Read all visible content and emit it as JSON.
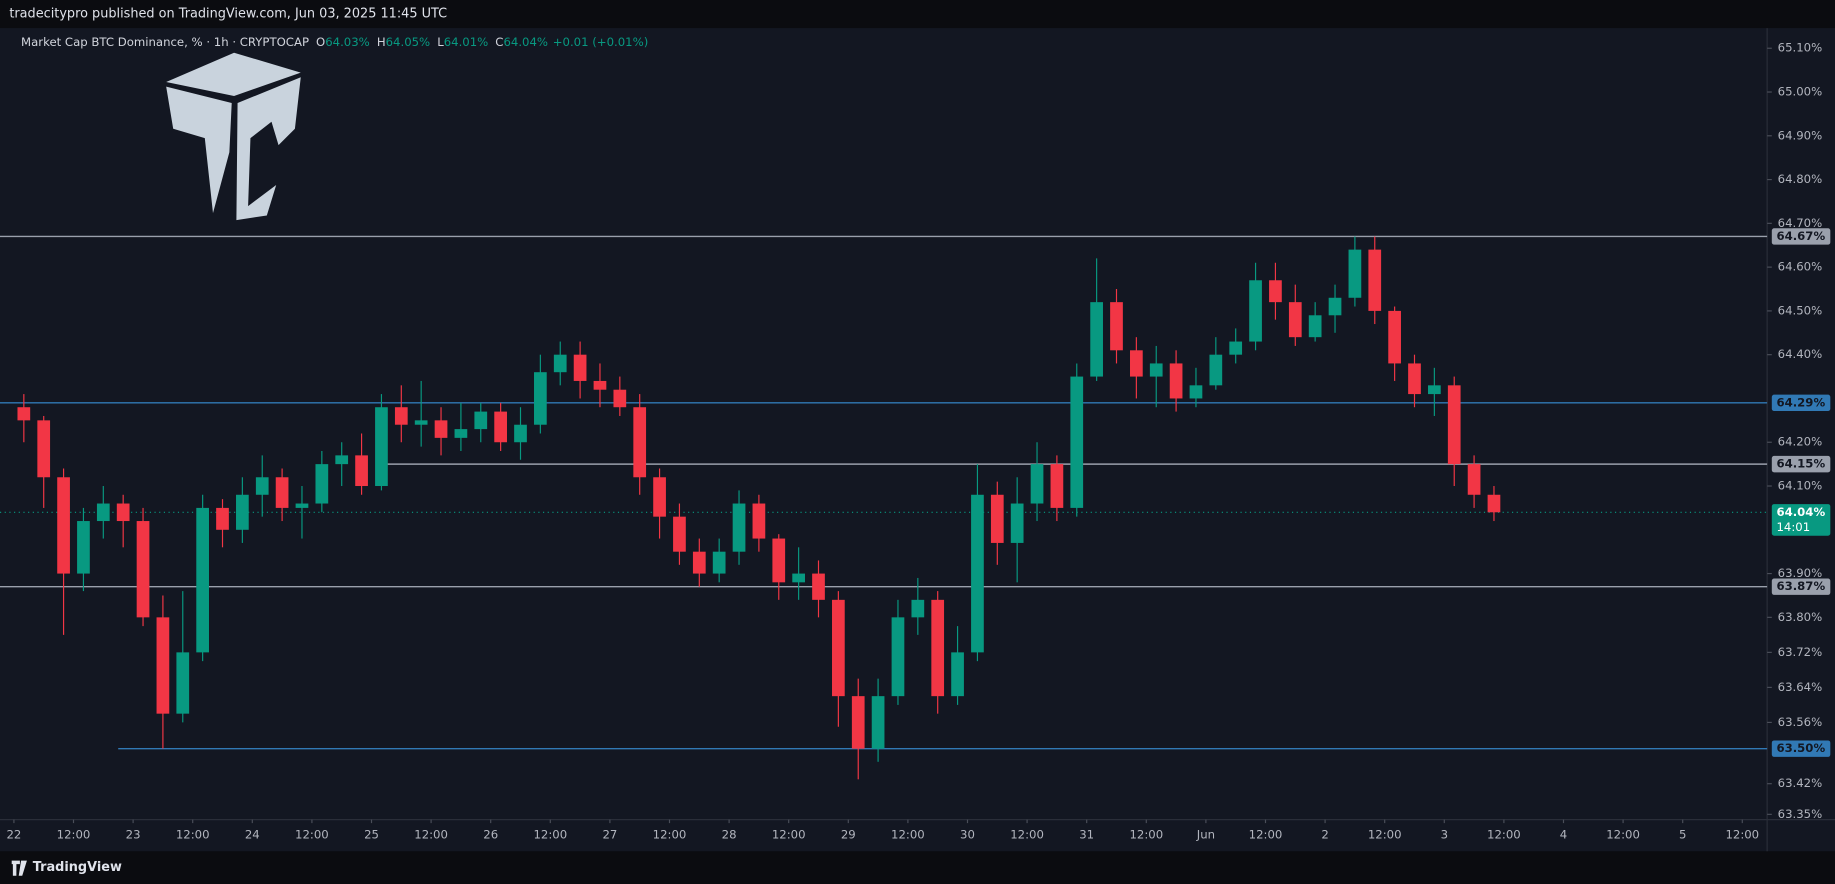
{
  "header": {
    "publisher": "tradecitypro published on TradingView.com, Jun 03, 2025 11:45 UTC"
  },
  "footer": {
    "brand": "TradingView"
  },
  "chart_data": {
    "type": "candlestick",
    "symbol": "Market Cap BTC Dominance, % · 1h · CRYPTOCAP",
    "legend_ohlc": [
      {
        "key": "O",
        "value": 64.03,
        "label": "64.03%"
      },
      {
        "key": "H",
        "value": 64.05,
        "label": "64.05%"
      },
      {
        "key": "L",
        "value": 64.01,
        "label": "64.01%"
      },
      {
        "key": "C",
        "value": 64.04,
        "label": "64.04%"
      }
    ],
    "change": "+0.01 (+0.01%)",
    "up_color": "#089981",
    "down_color": "#f23645",
    "x": [
      0,
      4,
      8,
      12,
      16,
      20,
      24,
      28,
      32,
      36,
      40,
      44,
      48,
      52,
      56,
      60,
      64,
      68,
      72,
      76,
      80,
      84,
      88,
      92,
      96,
      100,
      104,
      108,
      112,
      116,
      120,
      124,
      128,
      132,
      136,
      140,
      144,
      148,
      152,
      156,
      160,
      164,
      168,
      172,
      176,
      180,
      184,
      188,
      192,
      196,
      200,
      204,
      208,
      212,
      216,
      220,
      224,
      228,
      232,
      236,
      240,
      244,
      248,
      252,
      256,
      260,
      264,
      268,
      272,
      276,
      280,
      284,
      288,
      292,
      296
    ],
    "open": [
      64.28,
      64.25,
      64.12,
      63.9,
      64.02,
      64.06,
      64.02,
      63.8,
      63.58,
      63.72,
      64.05,
      64.0,
      64.08,
      64.12,
      64.05,
      64.06,
      64.15,
      64.17,
      64.1,
      64.28,
      64.24,
      64.25,
      64.21,
      64.23,
      64.27,
      64.2,
      64.24,
      64.36,
      64.4,
      64.34,
      64.32,
      64.28,
      64.12,
      64.03,
      63.95,
      63.9,
      63.95,
      64.06,
      63.98,
      63.88,
      63.9,
      63.84,
      63.62,
      63.5,
      63.62,
      63.8,
      63.84,
      63.62,
      63.72,
      64.08,
      63.97,
      64.06,
      64.15,
      64.05,
      64.35,
      64.52,
      64.41,
      64.35,
      64.38,
      64.3,
      64.33,
      64.4,
      64.43,
      64.57,
      64.52,
      64.44,
      64.49,
      64.53,
      64.64,
      64.5,
      64.38,
      64.31,
      64.33,
      64.15,
      64.08
    ],
    "high": [
      64.31,
      64.26,
      64.14,
      64.05,
      64.1,
      64.08,
      64.05,
      63.85,
      63.86,
      64.08,
      64.07,
      64.12,
      64.17,
      64.14,
      64.1,
      64.18,
      64.2,
      64.22,
      64.31,
      64.33,
      64.34,
      64.28,
      64.29,
      64.29,
      64.29,
      64.28,
      64.4,
      64.43,
      64.43,
      64.38,
      64.35,
      64.31,
      64.14,
      64.06,
      63.98,
      63.98,
      64.09,
      64.08,
      63.99,
      63.96,
      63.93,
      63.86,
      63.66,
      63.66,
      63.84,
      63.89,
      63.86,
      63.78,
      64.15,
      64.11,
      64.12,
      64.2,
      64.17,
      64.38,
      64.62,
      64.55,
      64.44,
      64.42,
      64.41,
      64.37,
      64.44,
      64.46,
      64.61,
      64.61,
      64.56,
      64.52,
      64.56,
      64.67,
      64.67,
      64.51,
      64.4,
      64.37,
      64.35,
      64.17,
      64.1
    ],
    "low": [
      64.2,
      64.05,
      63.76,
      63.86,
      63.98,
      63.96,
      63.78,
      63.5,
      63.56,
      63.7,
      63.96,
      63.97,
      64.03,
      64.02,
      63.98,
      64.04,
      64.1,
      64.08,
      64.09,
      64.2,
      64.19,
      64.17,
      64.18,
      64.2,
      64.18,
      64.16,
      64.22,
      64.33,
      64.3,
      64.28,
      64.26,
      64.08,
      63.98,
      63.92,
      63.87,
      63.88,
      63.92,
      63.95,
      63.84,
      63.84,
      63.8,
      63.55,
      63.43,
      63.47,
      63.6,
      63.76,
      63.58,
      63.6,
      63.7,
      63.92,
      63.88,
      64.02,
      64.02,
      64.03,
      64.34,
      64.38,
      64.3,
      64.28,
      64.27,
      64.28,
      64.32,
      64.38,
      64.41,
      64.48,
      64.42,
      64.43,
      64.45,
      64.51,
      64.47,
      64.34,
      64.28,
      64.26,
      64.1,
      64.05,
      64.02
    ],
    "close": [
      64.25,
      64.12,
      63.9,
      64.02,
      64.06,
      64.02,
      63.8,
      63.58,
      63.72,
      64.05,
      64.0,
      64.08,
      64.12,
      64.05,
      64.06,
      64.15,
      64.17,
      64.1,
      64.28,
      64.24,
      64.25,
      64.21,
      64.23,
      64.27,
      64.2,
      64.24,
      64.36,
      64.4,
      64.34,
      64.32,
      64.28,
      64.12,
      64.03,
      63.95,
      63.9,
      63.95,
      64.06,
      63.98,
      63.88,
      63.9,
      63.84,
      63.62,
      63.5,
      63.62,
      63.8,
      63.84,
      63.62,
      63.72,
      64.08,
      63.97,
      64.06,
      64.15,
      64.05,
      64.35,
      64.52,
      64.41,
      64.35,
      64.38,
      64.3,
      64.33,
      64.4,
      64.43,
      64.57,
      64.52,
      64.44,
      64.49,
      64.53,
      64.64,
      64.5,
      64.38,
      64.31,
      64.33,
      64.15,
      64.08,
      64.04
    ],
    "xlim": [
      -2.8,
      353
    ],
    "ylim": [
      63.338,
      65.146
    ],
    "xticks": [
      {
        "value": 0,
        "label": "22"
      },
      {
        "value": 12,
        "label": "12:00"
      },
      {
        "value": 24,
        "label": "23"
      },
      {
        "value": 36,
        "label": "12:00"
      },
      {
        "value": 48,
        "label": "24"
      },
      {
        "value": 60,
        "label": "12:00"
      },
      {
        "value": 72,
        "label": "25"
      },
      {
        "value": 84,
        "label": "12:00"
      },
      {
        "value": 96,
        "label": "26"
      },
      {
        "value": 108,
        "label": "12:00"
      },
      {
        "value": 120,
        "label": "27"
      },
      {
        "value": 132,
        "label": "12:00"
      },
      {
        "value": 144,
        "label": "28"
      },
      {
        "value": 156,
        "label": "12:00"
      },
      {
        "value": 168,
        "label": "29"
      },
      {
        "value": 180,
        "label": "12:00"
      },
      {
        "value": 192,
        "label": "30"
      },
      {
        "value": 204,
        "label": "12:00"
      },
      {
        "value": 216,
        "label": "31"
      },
      {
        "value": 228,
        "label": "12:00"
      },
      {
        "value": 240,
        "label": "Jun"
      },
      {
        "value": 252,
        "label": "12:00"
      },
      {
        "value": 264,
        "label": "2"
      },
      {
        "value": 276,
        "label": "12:00"
      },
      {
        "value": 288,
        "label": "3"
      },
      {
        "value": 300,
        "label": "12:00"
      },
      {
        "value": 312,
        "label": "4"
      },
      {
        "value": 324,
        "label": "12:00"
      },
      {
        "value": 336,
        "label": "5"
      },
      {
        "value": 348,
        "label": "12:00"
      }
    ],
    "yticks": [
      {
        "value": 65.1,
        "label": "65.10%"
      },
      {
        "value": 65.0,
        "label": "65.00%"
      },
      {
        "value": 64.9,
        "label": "64.90%"
      },
      {
        "value": 64.8,
        "label": "64.80%"
      },
      {
        "value": 64.7,
        "label": "64.70%"
      },
      {
        "value": 64.6,
        "label": "64.60%"
      },
      {
        "value": 64.5,
        "label": "64.50%"
      },
      {
        "value": 64.4,
        "label": "64.40%"
      },
      {
        "value": 64.2,
        "label": "64.20%"
      },
      {
        "value": 64.1,
        "label": "64.10%"
      },
      {
        "value": 63.9,
        "label": "63.90%"
      },
      {
        "value": 63.8,
        "label": "63.80%"
      },
      {
        "value": 63.72,
        "label": "63.72%"
      },
      {
        "value": 63.64,
        "label": "63.64%"
      },
      {
        "value": 63.56,
        "label": "63.56%"
      },
      {
        "value": 63.42,
        "label": "63.42%"
      },
      {
        "value": 63.35,
        "label": "63.35%"
      }
    ],
    "levels": [
      {
        "value": 64.67,
        "label": "64.67%",
        "color": "#9aa0ac"
      },
      {
        "value": 64.29,
        "label": "64.29%",
        "color": "#3179b5"
      },
      {
        "value": 64.15,
        "label": "64.15%",
        "color": "#9aa0ac",
        "x_start": 75
      },
      {
        "value": 63.87,
        "label": "63.87%",
        "color": "#9aa0ac"
      },
      {
        "value": 63.5,
        "label": "63.50%",
        "color": "#3179b5",
        "x_start": 21
      }
    ],
    "last_price": {
      "value": 64.04,
      "label": "64.04%",
      "countdown": "14:01",
      "color": "#089981"
    }
  }
}
